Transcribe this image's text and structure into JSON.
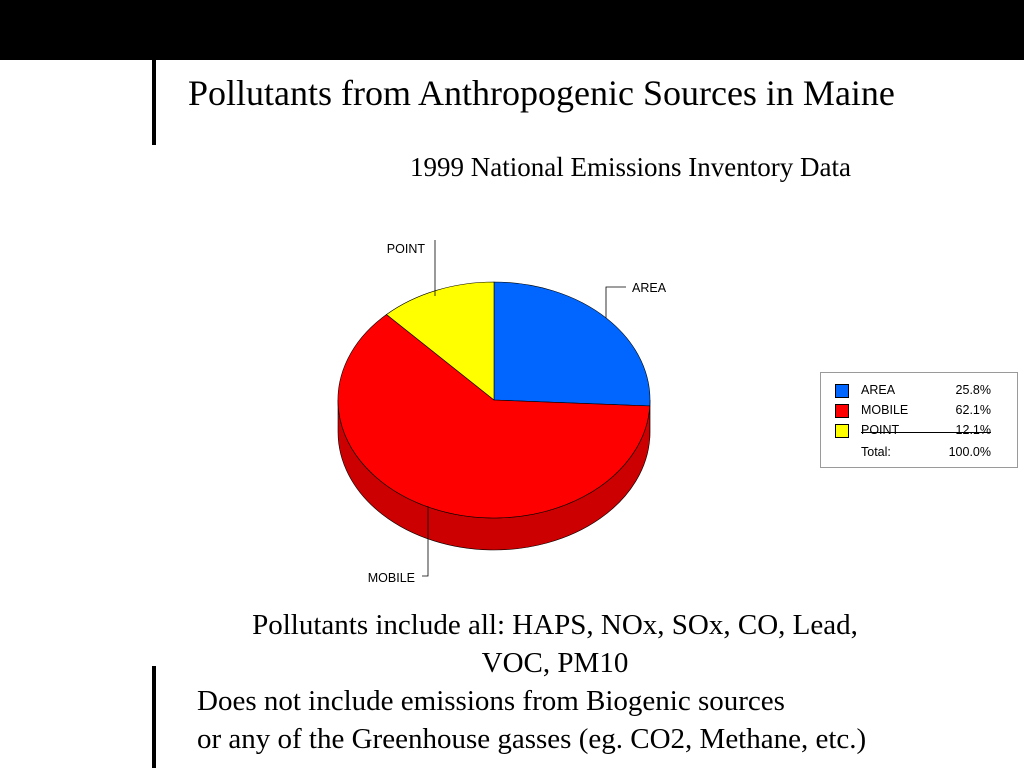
{
  "slide": {
    "title": "Pollutants from Anthropogenic Sources in Maine",
    "subtitle": "1999 National Emissions Inventory Data",
    "note_line1": "Pollutants include all: HAPS, NOx, SOx, CO, Lead,",
    "note_line2": "VOC, PM10",
    "note2_line1": "Does not include emissions from Biogenic sources",
    "note2_line2": "or any of the Greenhouse gasses (eg. CO2, Methane, etc.)"
  },
  "chart_data": {
    "type": "pie",
    "title": "",
    "categories": [
      "AREA",
      "MOBILE",
      "POINT"
    ],
    "values": [
      25.8,
      62.1,
      12.1
    ],
    "colors": [
      "#0066ff",
      "#ff0000",
      "#ffff00"
    ],
    "side_colors": [
      "#0044bb",
      "#cc0000",
      "#cccc00"
    ],
    "percent_labels": [
      "25.8%",
      "62.1%",
      "12.1%"
    ],
    "total_label": "Total:",
    "total_value": "100.0%",
    "legend_position": "right",
    "style": "3d"
  }
}
